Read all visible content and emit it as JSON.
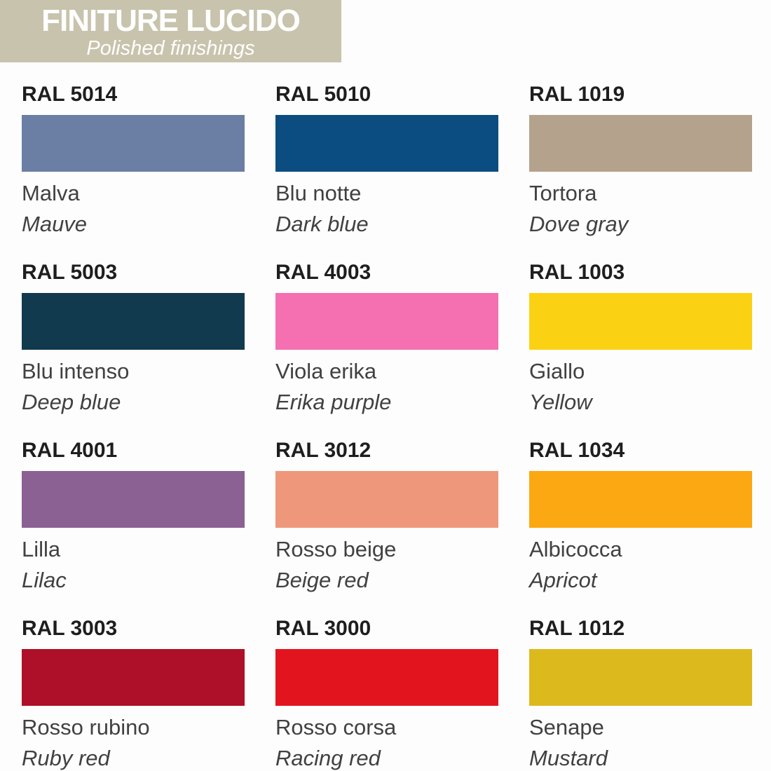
{
  "header": {
    "title": "FINITURE LUCIDO",
    "subtitle": "Polished finishings",
    "background": "#c8c3ac",
    "text_color": "#ffffff"
  },
  "palette": {
    "swatches": [
      {
        "code": "RAL 5014",
        "name_it": "Malva",
        "name_en": "Mauve",
        "hex": "#6b7fa4"
      },
      {
        "code": "RAL 5010",
        "name_it": "Blu notte",
        "name_en": "Dark blue",
        "hex": "#0b4d80"
      },
      {
        "code": "RAL 1019",
        "name_it": "Tortora",
        "name_en": "Dove gray",
        "hex": "#b5a28c"
      },
      {
        "code": "RAL 5003",
        "name_it": "Blu intenso",
        "name_en": "Deep blue",
        "hex": "#113a4e"
      },
      {
        "code": "RAL 4003",
        "name_it": "Viola erika",
        "name_en": "Erika purple",
        "hex": "#f470b1"
      },
      {
        "code": "RAL 1003",
        "name_it": "Giallo",
        "name_en": "Yellow",
        "hex": "#fad213"
      },
      {
        "code": "RAL 4001",
        "name_it": "Lilla",
        "name_en": "Lilac",
        "hex": "#8b6193"
      },
      {
        "code": "RAL 3012",
        "name_it": "Rosso beige",
        "name_en": "Beige red",
        "hex": "#ef977a"
      },
      {
        "code": "RAL 1034",
        "name_it": "Albicocca",
        "name_en": "Apricot",
        "hex": "#fba812"
      },
      {
        "code": "RAL 3003",
        "name_it": "Rosso rubino",
        "name_en": "Ruby red",
        "hex": "#ad1028"
      },
      {
        "code": "RAL 3000",
        "name_it": "Rosso corsa",
        "name_en": "Racing red",
        "hex": "#e2151f"
      },
      {
        "code": "RAL 1012",
        "name_it": "Senape",
        "name_en": "Mustard",
        "hex": "#dcba1e"
      }
    ]
  }
}
